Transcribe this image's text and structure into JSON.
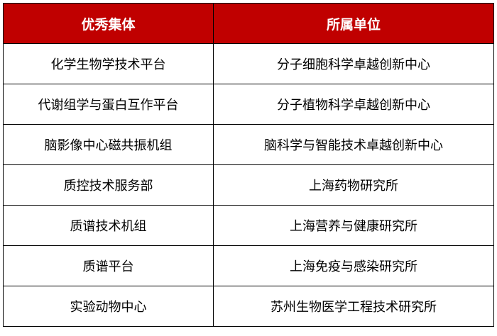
{
  "table": {
    "headers": [
      "优秀集体",
      "所属单位"
    ],
    "rows": [
      [
        "化学生物学技术平台",
        "分子细胞科学卓越创新中心"
      ],
      [
        "代谢组学与蛋白互作平台",
        "分子植物科学卓越创新中心"
      ],
      [
        "脑影像中心磁共振机组",
        "脑科学与智能技术卓越创新中心"
      ],
      [
        "质控技术服务部",
        "上海药物研究所"
      ],
      [
        "质谱技术机组",
        "上海营养与健康研究所"
      ],
      [
        "质谱平台",
        "上海免疫与感染研究所"
      ],
      [
        "实验动物中心",
        "苏州生物医学工程技术研究所"
      ]
    ]
  },
  "colors": {
    "header_bg": "#c00000",
    "header_text": "#ffffff"
  }
}
